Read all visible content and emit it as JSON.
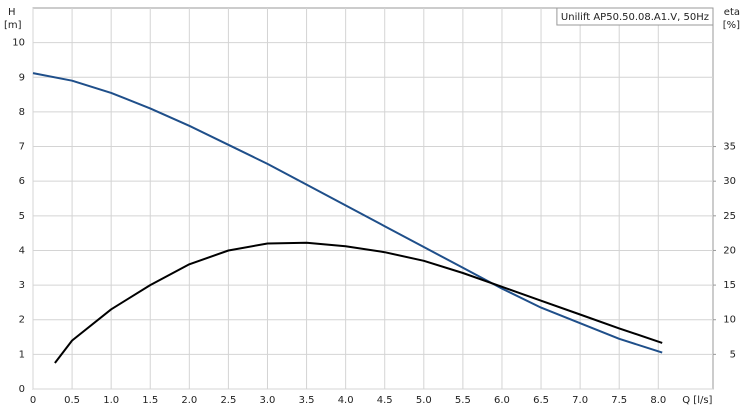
{
  "chart_data": {
    "type": "line",
    "title": "Unilift AP50.50.08.A1.V, 50Hz",
    "y_label": "H",
    "y_unit": "[m]",
    "y2_label": "eta",
    "y2_unit": "[%]",
    "x_label": "Q [l/s]",
    "xlim": [
      0,
      8.7
    ],
    "xticks": [
      0,
      0.5,
      {
        "value": 1,
        "label": "1.0"
      },
      1.5,
      {
        "value": 2,
        "label": "2.0"
      },
      2.5,
      {
        "value": 3,
        "label": "3.0"
      },
      3.5,
      {
        "value": 4,
        "label": "4.0"
      },
      4.5,
      {
        "value": 5,
        "label": "5.0"
      },
      5.5,
      {
        "value": 6,
        "label": "6.0"
      },
      6.5,
      {
        "value": 7,
        "label": "7.0"
      },
      7.5,
      {
        "value": 8,
        "label": "8.0"
      }
    ],
    "ylim": [
      0,
      11
    ],
    "yticks": [
      0,
      1,
      2,
      3,
      4,
      5,
      6,
      7,
      8,
      9,
      10
    ],
    "y2lim": [
      0,
      55
    ],
    "y2ticks": [
      5,
      10,
      15,
      20,
      25,
      30,
      35
    ],
    "grid": true,
    "series": [
      {
        "color": "#1f4f8a",
        "x": [
          0,
          0.5,
          1,
          1.5,
          2,
          2.5,
          3,
          3.5,
          4,
          4.5,
          5,
          5.5,
          6,
          6.5,
          7,
          7.5,
          8.05
        ],
        "values": [
          9.12,
          8.9,
          8.55,
          8.1,
          7.6,
          7.05,
          6.5,
          5.9,
          5.3,
          4.7,
          4.1,
          3.5,
          2.9,
          2.35,
          1.9,
          1.45,
          1.05
        ]
      },
      {
        "color": "#000000",
        "axis": "y2",
        "x": [
          0.28,
          0.5,
          1,
          1.5,
          2,
          2.5,
          3,
          3.5,
          4,
          4.5,
          5,
          5.5,
          6,
          6.5,
          7,
          7.5,
          8.05
        ],
        "values": [
          3.75,
          7,
          11.5,
          15,
          18,
          20,
          21,
          21.1,
          20.6,
          19.75,
          18.5,
          16.75,
          14.75,
          12.75,
          10.75,
          8.75,
          6.65
        ]
      }
    ]
  }
}
